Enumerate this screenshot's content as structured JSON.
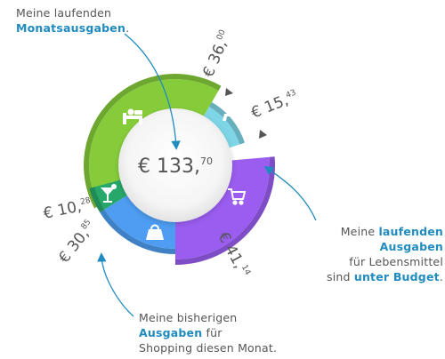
{
  "center_total": {
    "int": "€ 133,",
    "dec": "70"
  },
  "segments": [
    {
      "key": "green",
      "amount_int": "€ 36,",
      "amount_dec": "00",
      "color": "#86cc3a",
      "icon": "bed-icon"
    },
    {
      "key": "teal",
      "amount_int": "€ 15,",
      "amount_dec": "43",
      "color": "#7ed5e6",
      "icon": "person-icon"
    },
    {
      "key": "purple",
      "amount_int": "€ 41,",
      "amount_dec": "14",
      "color": "#9a5df0",
      "icon": "cart-icon"
    },
    {
      "key": "blue",
      "amount_int": "€ 30,",
      "amount_dec": "85",
      "color": "#4e9df2",
      "icon": "bag-icon"
    },
    {
      "key": "dark-green",
      "amount_int": "€ 10,",
      "amount_dec": "28",
      "color": "#27a86b",
      "icon": "cocktail-icon"
    }
  ],
  "notes": {
    "top": {
      "line1": "Meine laufenden",
      "line2_hl": "Monatsausgaben",
      "line2_tail": "."
    },
    "right": {
      "line1_pre": "Meine ",
      "line1_hl": "laufenden Ausgaben",
      "line2": "für Lebensmittel",
      "line3_pre": "sind ",
      "line3_hl": "unter Budget",
      "line3_tail": "."
    },
    "bottom": {
      "line1": "Meine bisherigen",
      "line2_hl": "Ausgaben",
      "line2_tail": " für",
      "line3": "Shopping diesen Monat."
    }
  },
  "colors": {
    "accent": "#1f8bbf",
    "text": "#555555",
    "marker": "#555555"
  }
}
